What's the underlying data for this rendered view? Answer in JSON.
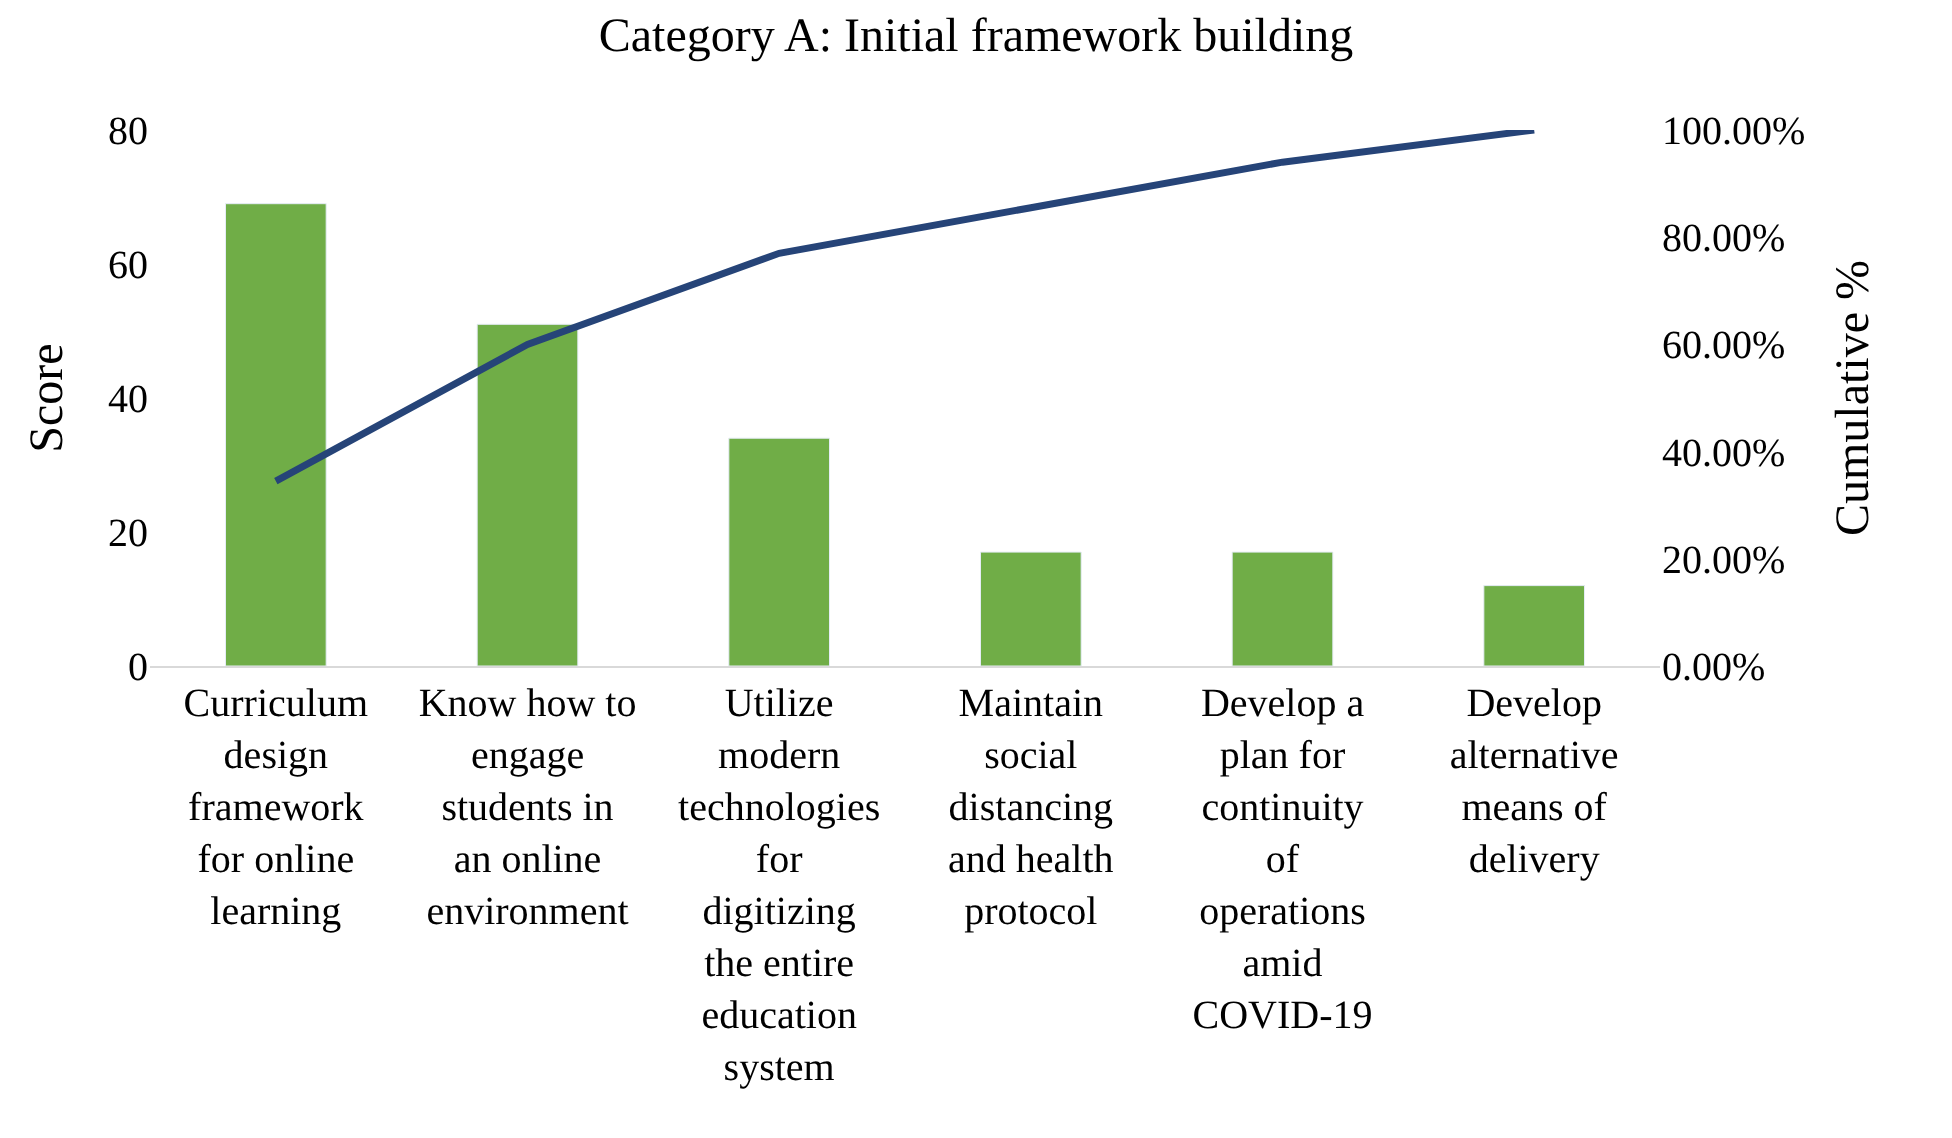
{
  "chart_data": {
    "type": "bar",
    "title": "Category A: Initial framework building",
    "ylabel": "Score",
    "categories": [
      "Curriculum design framework for online learning",
      "Know how to engage students in an online environment",
      "Utilize modern technologies for digitizing the entire education system",
      "Maintain social distancing and health protocol",
      "Develop a plan for continuity of operations amid COVID-19",
      "Develop alternative means of delivery"
    ],
    "series": [
      {
        "color": "#70ad47",
        "values": [
          69,
          51,
          34,
          17,
          17,
          12
        ]
      },
      {
        "type": "line",
        "axis": "y2",
        "color": "#264478",
        "marker": "none",
        "values": [
          34.5,
          60,
          77,
          85.5,
          94,
          100
        ]
      }
    ],
    "ylim": [
      0,
      80
    ],
    "yticks": [
      0,
      20,
      40,
      60,
      80
    ],
    "y2lim": [
      0,
      100
    ],
    "y2ticks": [
      {
        "value": 0,
        "label": "0.00%"
      },
      {
        "value": 20,
        "label": "20.00%"
      },
      {
        "value": 40,
        "label": "40.00%"
      },
      {
        "value": 60,
        "label": "60.00%"
      },
      {
        "value": 80,
        "label": "80.00%"
      },
      {
        "value": 100,
        "label": "100.00%"
      }
    ],
    "y2label": "Cumulative %"
  }
}
